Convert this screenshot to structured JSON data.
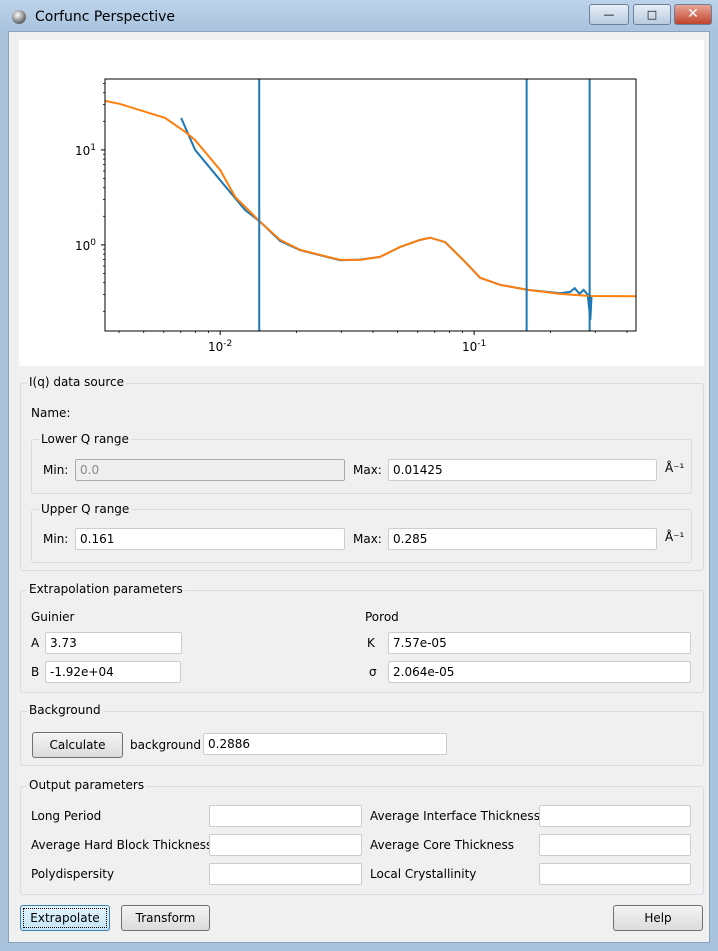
{
  "window": {
    "title": "Corfunc Perspective",
    "minimize": "—",
    "maximize": "□",
    "close": "✕"
  },
  "chart_data": {
    "type": "line",
    "xscale": "log",
    "yscale": "log",
    "xlim": [
      0.00352,
      0.434
    ],
    "ylim": [
      0.124,
      55.8
    ],
    "x_ticks": [
      "10^-2",
      "10^-1"
    ],
    "y_ticks": [
      "10^1",
      "10^0"
    ],
    "x_tick_values": [
      0.01,
      0.1
    ],
    "y_tick_values": [
      10,
      1
    ],
    "colors": {
      "data": "#1f77b4",
      "extrapolation": "#ff7f0e"
    },
    "vlines": [
      0.01425,
      0.161,
      0.285
    ],
    "series": [
      {
        "points": [
          [
            0.00702,
            21.7
          ],
          [
            0.00797,
            10
          ],
          [
            0.01,
            4.8
          ],
          [
            0.01254,
            2.33
          ],
          [
            0.01437,
            1.75
          ],
          [
            0.01722,
            1.1
          ],
          [
            0.02065,
            0.88
          ],
          [
            0.02966,
            0.69
          ],
          [
            0.03556,
            0.7
          ],
          [
            0.04263,
            0.748
          ],
          [
            0.05113,
            0.952
          ],
          [
            0.0613,
            1.13
          ],
          [
            0.0672,
            1.19
          ],
          [
            0.0769,
            1.07
          ],
          [
            0.0922,
            0.662
          ],
          [
            0.1057,
            0.45
          ],
          [
            0.1265,
            0.38
          ],
          [
            0.163,
            0.336
          ],
          [
            0.218,
            0.31
          ],
          [
            0.239,
            0.32
          ],
          [
            0.249,
            0.35
          ],
          [
            0.26,
            0.305
          ],
          [
            0.27,
            0.336
          ],
          [
            0.28,
            0.3
          ],
          [
            0.287,
            0.163
          ],
          [
            0.29,
            0.29
          ]
        ]
      },
      {
        "points": [
          [
            0.00352,
            32.8
          ],
          [
            0.00403,
            30.5
          ],
          [
            0.00607,
            21.7
          ],
          [
            0.00728,
            15.5
          ],
          [
            0.00797,
            12.7
          ],
          [
            0.01,
            6.15
          ],
          [
            0.01146,
            3.2
          ],
          [
            0.01437,
            1.75
          ],
          [
            0.01722,
            1.13
          ],
          [
            0.02065,
            0.886
          ],
          [
            0.02966,
            0.695
          ],
          [
            0.03556,
            0.695
          ],
          [
            0.04263,
            0.748
          ],
          [
            0.05113,
            0.952
          ],
          [
            0.0613,
            1.13
          ],
          [
            0.0672,
            1.19
          ],
          [
            0.0769,
            1.07
          ],
          [
            0.0922,
            0.662
          ],
          [
            0.1057,
            0.45
          ],
          [
            0.1265,
            0.38
          ],
          [
            0.163,
            0.336
          ],
          [
            0.218,
            0.305
          ],
          [
            0.286,
            0.29
          ],
          [
            0.434,
            0.288
          ]
        ]
      }
    ]
  },
  "datasource": {
    "title": "I(q) data source",
    "name_label": "Name:",
    "lower": {
      "title": "Lower Q range",
      "min_label": "Min:",
      "min": "0.0",
      "max_label": "Max:",
      "max": "0.01425",
      "unit": "Å⁻¹"
    },
    "upper": {
      "title": "Upper Q range",
      "min_label": "Min:",
      "min": "0.161",
      "max_label": "Max:",
      "max": "0.285",
      "unit": "Å⁻¹"
    }
  },
  "extrap": {
    "title": "Extrapolation parameters",
    "guinier": "Guinier",
    "porod": "Porod",
    "a_label": "A",
    "a": "3.73",
    "b_label": "B",
    "b": "-1.92e+04",
    "k_label": "K",
    "k": "7.57e-05",
    "s_label": "σ",
    "s": "2.064e-05"
  },
  "background": {
    "title": "Background",
    "calculate": "Calculate",
    "label": "background",
    "value": "0.2886"
  },
  "output": {
    "title": "Output parameters",
    "long_period": "Long Period",
    "hard_block": "Average Hard Block Thickness",
    "polydispersity": "Polydispersity",
    "interface": "Average Interface Thickness",
    "core": "Average Core Thickness",
    "crystallinity": "Local Crystallinity"
  },
  "buttons": {
    "extrapolate": "Extrapolate",
    "transform": "Transform",
    "help": "Help"
  }
}
